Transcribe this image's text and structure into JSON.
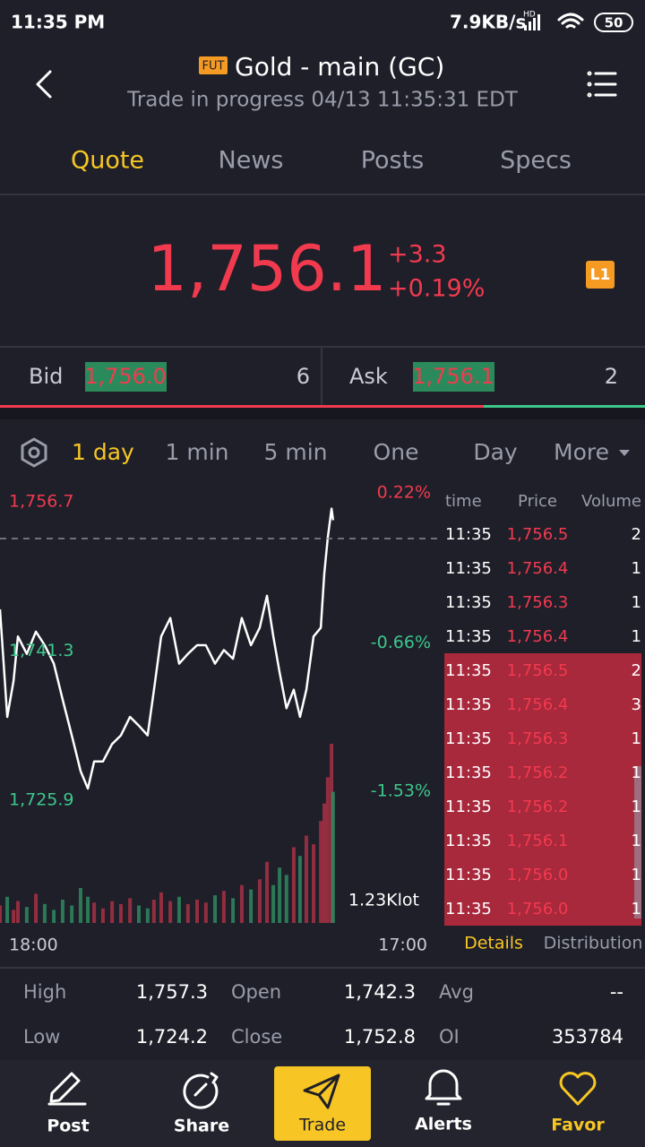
{
  "status": {
    "time": "11:35 PM",
    "speed": "7.9KB/s",
    "network": "HD",
    "battery": "50"
  },
  "header": {
    "badge": "FUT",
    "title": "Gold - main (GC)",
    "subtitle": "Trade in progress 04/13 11:35:31 EDT"
  },
  "tabs": [
    "Quote",
    "News",
    "Posts",
    "Specs"
  ],
  "quote": {
    "price": "1,756.1",
    "change": "+3.3",
    "change_pct": "+0.19%",
    "level": "L1"
  },
  "bid_ask": {
    "bid_label": "Bid",
    "bid_price": "1,756.0",
    "bid_size": "6",
    "ask_label": "Ask",
    "ask_price": "1,756.1",
    "ask_size": "2"
  },
  "periods": [
    "1 day",
    "1 min",
    "5 min",
    "One",
    "Day",
    "More"
  ],
  "chart_data": {
    "type": "line",
    "x": [
      0,
      23,
      43,
      57,
      85,
      114,
      142,
      171,
      199,
      228,
      256,
      279,
      299,
      327,
      356,
      384,
      413,
      441,
      469,
      489,
      512,
      541,
      569,
      597,
      626,
      654,
      683,
      711,
      740,
      768,
      797,
      825,
      848,
      868,
      888,
      910,
      933,
      953,
      973,
      996,
      1019,
      1030,
      1041,
      1053,
      1058
    ],
    "values": [
      1745.6,
      1734.5,
      1738.2,
      1742.8,
      1741.0,
      1743.3,
      1741.9,
      1740.0,
      1736.3,
      1732.6,
      1728.9,
      1727.1,
      1729.9,
      1729.9,
      1731.7,
      1732.6,
      1734.5,
      1733.6,
      1732.6,
      1737.3,
      1742.8,
      1744.7,
      1740.0,
      1741.0,
      1741.9,
      1741.9,
      1740.0,
      1741.4,
      1740.5,
      1744.7,
      1741.9,
      1743.7,
      1747.0,
      1742.8,
      1739.1,
      1735.4,
      1737.3,
      1734.5,
      1737.3,
      1742.8,
      1743.7,
      1749.3,
      1753.0,
      1756.0,
      1754.8
    ],
    "volume": [
      120,
      180,
      90,
      150,
      110,
      200,
      130,
      90,
      160,
      120,
      240,
      180,
      140,
      100,
      150,
      130,
      170,
      120,
      100,
      160,
      210,
      150,
      180,
      130,
      160,
      140,
      190,
      220,
      170,
      260,
      230,
      300,
      420,
      260,
      380,
      330,
      520,
      460,
      600,
      540,
      700,
      820,
      1000,
      1230,
      900
    ],
    "volume_label": "1.23Klot",
    "vlim": [
      0,
      1230
    ],
    "xlim": [
      0,
      1380
    ],
    "xticks": [
      {
        "value": 0,
        "label": "18:00"
      },
      {
        "value": 1380,
        "label": "17:00"
      }
    ],
    "ylim": [
      1725.9,
      1756.7
    ],
    "yticks": [
      {
        "value": 1756.7,
        "label": "1,756.7"
      },
      {
        "value": 1741.3,
        "label": "1,741.3"
      },
      {
        "value": 1725.9,
        "label": "1,725.9"
      }
    ],
    "y2lim": [
      -1.53,
      0.22
    ],
    "y2ticks": [
      {
        "value": 0.22,
        "label": "0.22%"
      },
      {
        "value": -0.66,
        "label": "-0.66%"
      },
      {
        "value": -1.53,
        "label": "-1.53%"
      }
    ],
    "color": "#ffffff"
  },
  "trades": {
    "headers": [
      "time",
      "Price",
      "Volume"
    ],
    "rows": [
      [
        "11:35",
        "1,756.5",
        "2"
      ],
      [
        "11:35",
        "1,756.4",
        "1"
      ],
      [
        "11:35",
        "1,756.3",
        "1"
      ],
      [
        "11:35",
        "1,756.4",
        "1"
      ],
      [
        "11:35",
        "1,756.5",
        "2"
      ],
      [
        "11:35",
        "1,756.4",
        "3"
      ],
      [
        "11:35",
        "1,756.3",
        "1"
      ],
      [
        "11:35",
        "1,756.2",
        "1"
      ],
      [
        "11:35",
        "1,756.2",
        "1"
      ],
      [
        "11:35",
        "1,756.1",
        "1"
      ],
      [
        "11:35",
        "1,756.0",
        "1"
      ],
      [
        "11:35",
        "1,756.0",
        "1"
      ]
    ],
    "tabs": [
      "Details",
      "Distribution"
    ]
  },
  "stats": {
    "rows": [
      [
        "High",
        "1,757.3",
        "Open",
        "1,742.3",
        "Avg",
        "--"
      ],
      [
        "Low",
        "1,724.2",
        "Close",
        "1,752.8",
        "OI",
        "353784"
      ]
    ]
  },
  "nav": [
    "Post",
    "Share",
    "Trade",
    "Alerts",
    "Favor"
  ]
}
